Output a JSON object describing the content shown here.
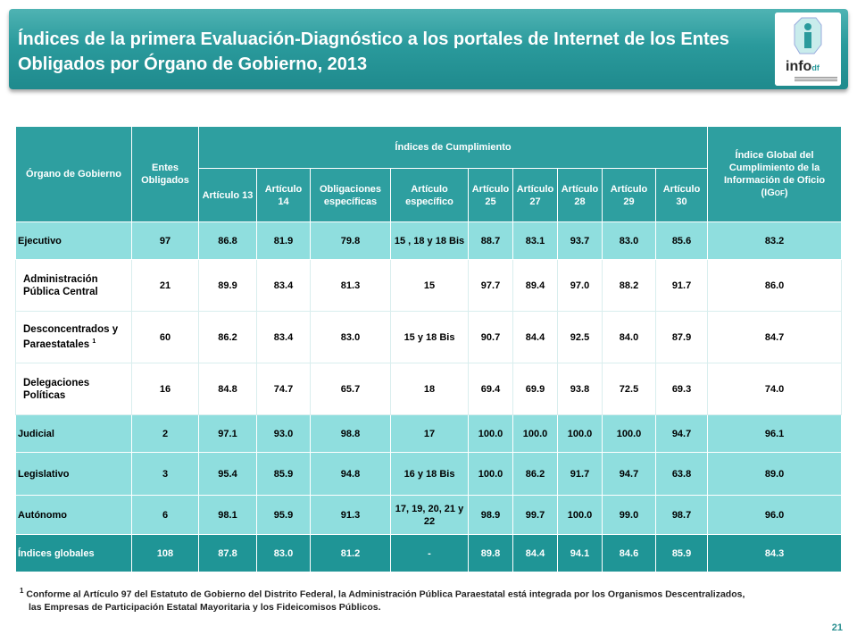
{
  "title": "Índices de la primera Evaluación-Diagnóstico a los portales de Internet de los Entes Obligados por Órgano de Gobierno, 2013",
  "logo": {
    "text": "info",
    "suffix": "df"
  },
  "headers": {
    "organo": "Órgano de Gobierno",
    "entes": "Entes Obligados",
    "indices": "Índices de Cumplimiento",
    "global_main": "Índice Global del Cumplimiento de la Información de Oficio",
    "global_sub": "(IG",
    "global_sub_small": "OF",
    "global_sub_end": ")",
    "cols": [
      "Artículo 13",
      "Artículo 14",
      "Obligaciones específicas",
      "Artículo específico",
      "Artículo 25",
      "Artículo 27",
      "Artículo 28",
      "Artículo 29",
      "Artículo 30"
    ]
  },
  "rows": [
    {
      "organo": "Ejecutivo",
      "sup": "",
      "entes": "97",
      "a13": "86.8",
      "a14": "81.9",
      "oblig": "79.8",
      "art_esp": "15 , 18 y 18 Bis",
      "a25": "88.7",
      "a27": "83.1",
      "a28": "93.7",
      "a29": "83.0",
      "a30": "85.6",
      "global": "83.2"
    },
    {
      "organo": "Administración Pública Central",
      "sup": "",
      "entes": "21",
      "a13": "89.9",
      "a14": "83.4",
      "oblig": "81.3",
      "art_esp": "15",
      "a25": "97.7",
      "a27": "89.4",
      "a28": "97.0",
      "a29": "88.2",
      "a30": "91.7",
      "global": "86.0"
    },
    {
      "organo": "Desconcentrados y Paraestatales",
      "sup": "1",
      "entes": "60",
      "a13": "86.2",
      "a14": "83.4",
      "oblig": "83.0",
      "art_esp": "15 y 18 Bis",
      "a25": "90.7",
      "a27": "84.4",
      "a28": "92.5",
      "a29": "84.0",
      "a30": "87.9",
      "global": "84.7"
    },
    {
      "organo": "Delegaciones Políticas",
      "sup": "",
      "entes": "16",
      "a13": "84.8",
      "a14": "74.7",
      "oblig": "65.7",
      "art_esp": "18",
      "a25": "69.4",
      "a27": "69.9",
      "a28": "93.8",
      "a29": "72.5",
      "a30": "69.3",
      "global": "74.0"
    },
    {
      "organo": "Judicial",
      "sup": "",
      "entes": "2",
      "a13": "97.1",
      "a14": "93.0",
      "oblig": "98.8",
      "art_esp": "17",
      "a25": "100.0",
      "a27": "100.0",
      "a28": "100.0",
      "a29": "100.0",
      "a30": "94.7",
      "global": "96.1"
    },
    {
      "organo": "Legislativo",
      "sup": "",
      "entes": "3",
      "a13": "95.4",
      "a14": "85.9",
      "oblig": "94.8",
      "art_esp": "16 y 18 Bis",
      "a25": "100.0",
      "a27": "86.2",
      "a28": "91.7",
      "a29": "94.7",
      "a30": "63.8",
      "global": "89.0"
    },
    {
      "organo": "Autónomo",
      "sup": "",
      "entes": "6",
      "a13": "98.1",
      "a14": "95.9",
      "oblig": "91.3",
      "art_esp": "17, 19, 20, 21 y 22",
      "a25": "98.9",
      "a27": "99.7",
      "a28": "100.0",
      "a29": "99.0",
      "a30": "98.7",
      "global": "96.0"
    },
    {
      "organo": "Índices globales",
      "sup": "",
      "entes": "108",
      "a13": "87.8",
      "a14": "83.0",
      "oblig": "81.2",
      "art_esp": "-",
      "a25": "89.8",
      "a27": "84.4",
      "a28": "94.1",
      "a29": "84.6",
      "a30": "85.9",
      "global": "84.3"
    }
  ],
  "footnote": {
    "marker": "1",
    "line1": "Conforme al Artículo 97 del Estatuto de Gobierno del Distrito Federal, la Administración Pública Paraestatal está integrada por los Organismos Descentralizados,",
    "line2": "las Empresas de Participación Estatal Mayoritaria y los Fideicomisos Públicos."
  },
  "page_number": "21",
  "colors": {
    "header": "#2e9fa0",
    "row_highlight": "#8fdede",
    "total_row": "#1f9596",
    "banner": "#2a9a9c"
  }
}
